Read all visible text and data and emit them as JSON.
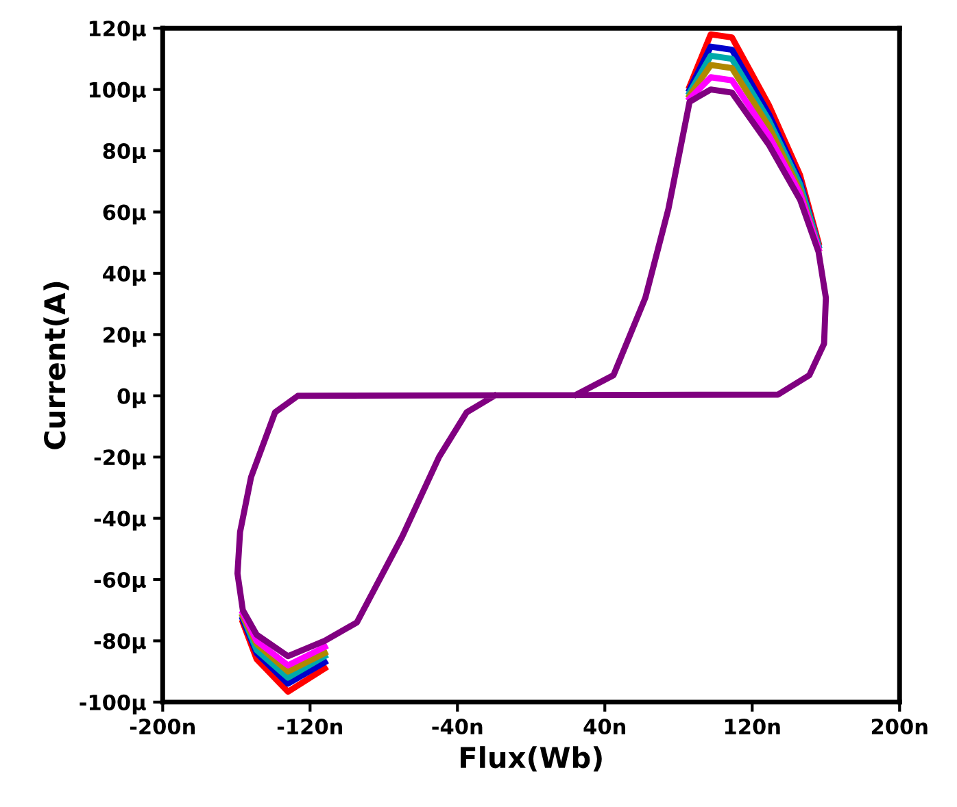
{
  "chart_data": {
    "type": "line",
    "xlabel": "Flux(Wb)",
    "ylabel": "Current(A)",
    "series": [
      {
        "color": "#ff0000",
        "x": [
          86,
          97.5,
          109,
          129,
          146,
          156
        ],
        "values": [
          101,
          118,
          117,
          95,
          72,
          50
        ]
      },
      {
        "color": "#ff0000",
        "x": [
          -156.5,
          -149,
          -132,
          -112
        ],
        "values": [
          -74,
          -86,
          -96.6,
          -89
        ]
      },
      {
        "color": "#0000cc",
        "x": [
          86,
          97.5,
          109,
          129,
          146,
          156
        ],
        "values": [
          100,
          114,
          113,
          92,
          70,
          49
        ]
      },
      {
        "color": "#0000cc",
        "x": [
          -156.5,
          -149,
          -132,
          -112
        ],
        "values": [
          -73,
          -84,
          -94,
          -87
        ]
      },
      {
        "color": "#00aaaa",
        "x": [
          86,
          97.5,
          109,
          129,
          146,
          156
        ],
        "values": [
          99,
          111,
          110,
          90,
          69,
          49
        ]
      },
      {
        "color": "#00aaaa",
        "x": [
          -156.5,
          -149,
          -132,
          -112
        ],
        "values": [
          -72,
          -83,
          -92,
          -85
        ]
      },
      {
        "color": "#b08800",
        "x": [
          86,
          97.5,
          109,
          129,
          146,
          156
        ],
        "values": [
          98,
          108,
          107,
          88,
          67,
          48
        ]
      },
      {
        "color": "#b08800",
        "x": [
          -156.5,
          -149,
          -132,
          -112
        ],
        "values": [
          -72,
          -81,
          -90,
          -84
        ]
      },
      {
        "color": "#ff00ff",
        "x": [
          86,
          97.5,
          109,
          129,
          146,
          156
        ],
        "values": [
          97,
          104,
          103,
          85,
          66,
          48
        ]
      },
      {
        "color": "#ff00ff",
        "x": [
          -156.5,
          -149,
          -132,
          -112
        ],
        "values": [
          -71,
          -80,
          -88,
          -82
        ]
      },
      {
        "color": "#800080",
        "x": [
          24.6,
          44.7,
          62,
          74.5,
          86,
          97.5,
          109,
          129,
          146,
          156,
          160,
          159,
          151,
          134,
          -126.6,
          -139,
          -152,
          -158,
          -159.4,
          -156.5,
          -149,
          -132,
          -112,
          -94.6,
          -70,
          -50,
          -35,
          -20
        ],
        "values": [
          0.4,
          6.7,
          32,
          61,
          96,
          100,
          99,
          82,
          64,
          47,
          32,
          17,
          6.7,
          0.4,
          0,
          -5.4,
          -26.5,
          -44.5,
          -58,
          -70,
          -78,
          -85,
          -80,
          -74,
          -46,
          -20,
          -5.4,
          0
        ]
      }
    ],
    "xlim": [
      -200,
      200
    ],
    "ylim": [
      -100,
      120
    ],
    "xticks": [
      {
        "value": -200,
        "label": "-200n"
      },
      {
        "value": -120,
        "label": "-120n"
      },
      {
        "value": -40,
        "label": "-40n"
      },
      {
        "value": 40,
        "label": "40n"
      },
      {
        "value": 120,
        "label": "120n"
      },
      {
        "value": 200,
        "label": "200n"
      }
    ],
    "yticks": [
      {
        "value": -100,
        "label": "-100µ"
      },
      {
        "value": -80,
        "label": "-80µ"
      },
      {
        "value": -60,
        "label": "-60µ"
      },
      {
        "value": -40,
        "label": "-40µ"
      },
      {
        "value": -20,
        "label": "-20µ"
      },
      {
        "value": 0,
        "label": "0µ"
      },
      {
        "value": 20,
        "label": "20µ"
      },
      {
        "value": 40,
        "label": "40µ"
      },
      {
        "value": 60,
        "label": "60µ"
      },
      {
        "value": 80,
        "label": "80µ"
      },
      {
        "value": 100,
        "label": "100µ"
      },
      {
        "value": 120,
        "label": "120µ"
      }
    ],
    "grid": false,
    "marker": "none",
    "line_style": "solid"
  }
}
